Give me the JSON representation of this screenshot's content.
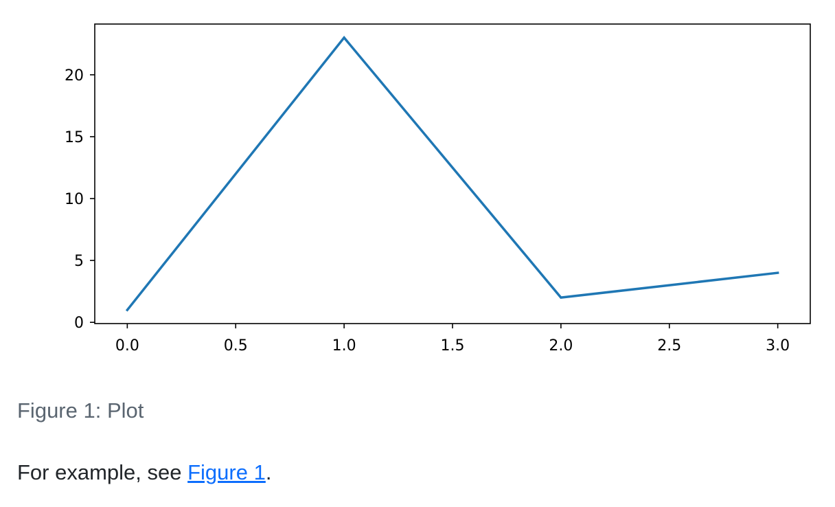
{
  "chart_data": {
    "type": "line",
    "title": "",
    "xlabel": "",
    "ylabel": "",
    "x": [
      0,
      1,
      2,
      3
    ],
    "series": [
      {
        "values": [
          1,
          23,
          2,
          4
        ],
        "color": "#1f77b4"
      }
    ],
    "xlim": [
      -0.15,
      3.15
    ],
    "ylim": [
      -0.1,
      24.1
    ],
    "xticks": [
      0.0,
      0.5,
      1.0,
      1.5,
      2.0,
      2.5,
      3.0
    ],
    "xtick_labels": [
      "0.0",
      "0.5",
      "1.0",
      "1.5",
      "2.0",
      "2.5",
      "3.0"
    ],
    "yticks": [
      0,
      5,
      10,
      15,
      20
    ],
    "ytick_labels": [
      "0",
      "5",
      "10",
      "15",
      "20"
    ],
    "grid": false
  },
  "caption": "Figure 1: Plot",
  "paragraph": {
    "before": "For example, see ",
    "link": "Figure 1",
    "after": "."
  },
  "colors": {
    "caption": "#5a6570",
    "link": "#0d6efd",
    "text": "#212529"
  }
}
